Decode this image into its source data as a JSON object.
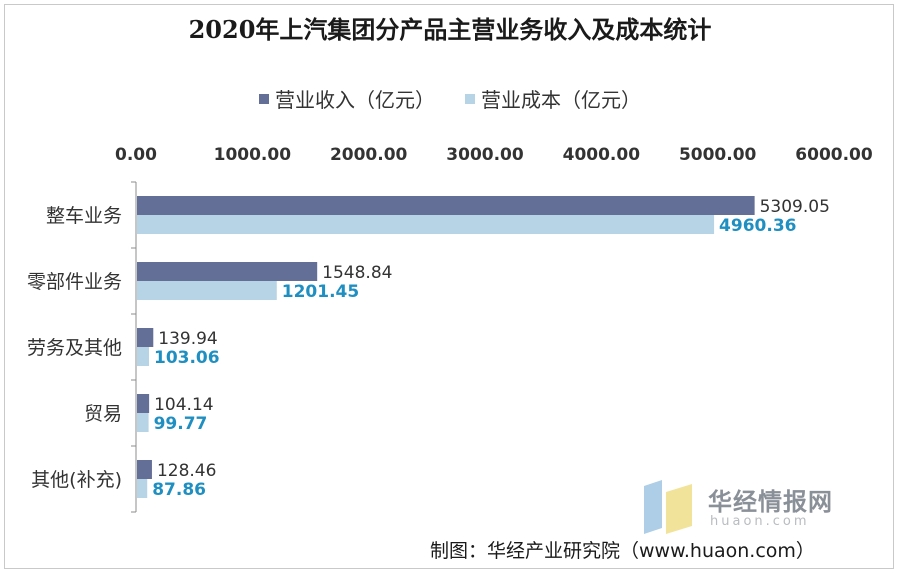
{
  "chart_data": {
    "type": "bar",
    "orientation": "horizontal",
    "title": "2020年上汽集团分产品主营业务收入及成本统计",
    "categories": [
      "整车业务",
      "零部件业务",
      "劳务及其他",
      "贸易",
      "其他(补充)"
    ],
    "series": [
      {
        "name": "营业收入（亿元）",
        "color": "#636f96",
        "label_color": "#333333",
        "values": [
          5309.05,
          1548.84,
          139.94,
          104.14,
          128.46
        ]
      },
      {
        "name": "营业成本（亿元）",
        "color": "#b7d3e6",
        "label_color": "#1f8fc2",
        "values": [
          4960.36,
          1201.45,
          103.06,
          99.77,
          87.86
        ]
      }
    ],
    "value_labels": [
      [
        "5309.05",
        "1548.84",
        "139.94",
        "104.14",
        "128.46"
      ],
      [
        "4960.36",
        "1201.45",
        "103.06",
        "99.77",
        "87.86"
      ]
    ],
    "xlim": [
      0,
      6000
    ],
    "xticks": [
      "0.00",
      "1000.00",
      "2000.00",
      "3000.00",
      "4000.00",
      "5000.00",
      "6000.00"
    ],
    "axis_position": "top",
    "grid": false,
    "legend_position": "top"
  },
  "source": "制图：华经产业研究院（www.huaon.com）",
  "watermark": {
    "name": "华经情报网",
    "url": "huaon.com"
  }
}
